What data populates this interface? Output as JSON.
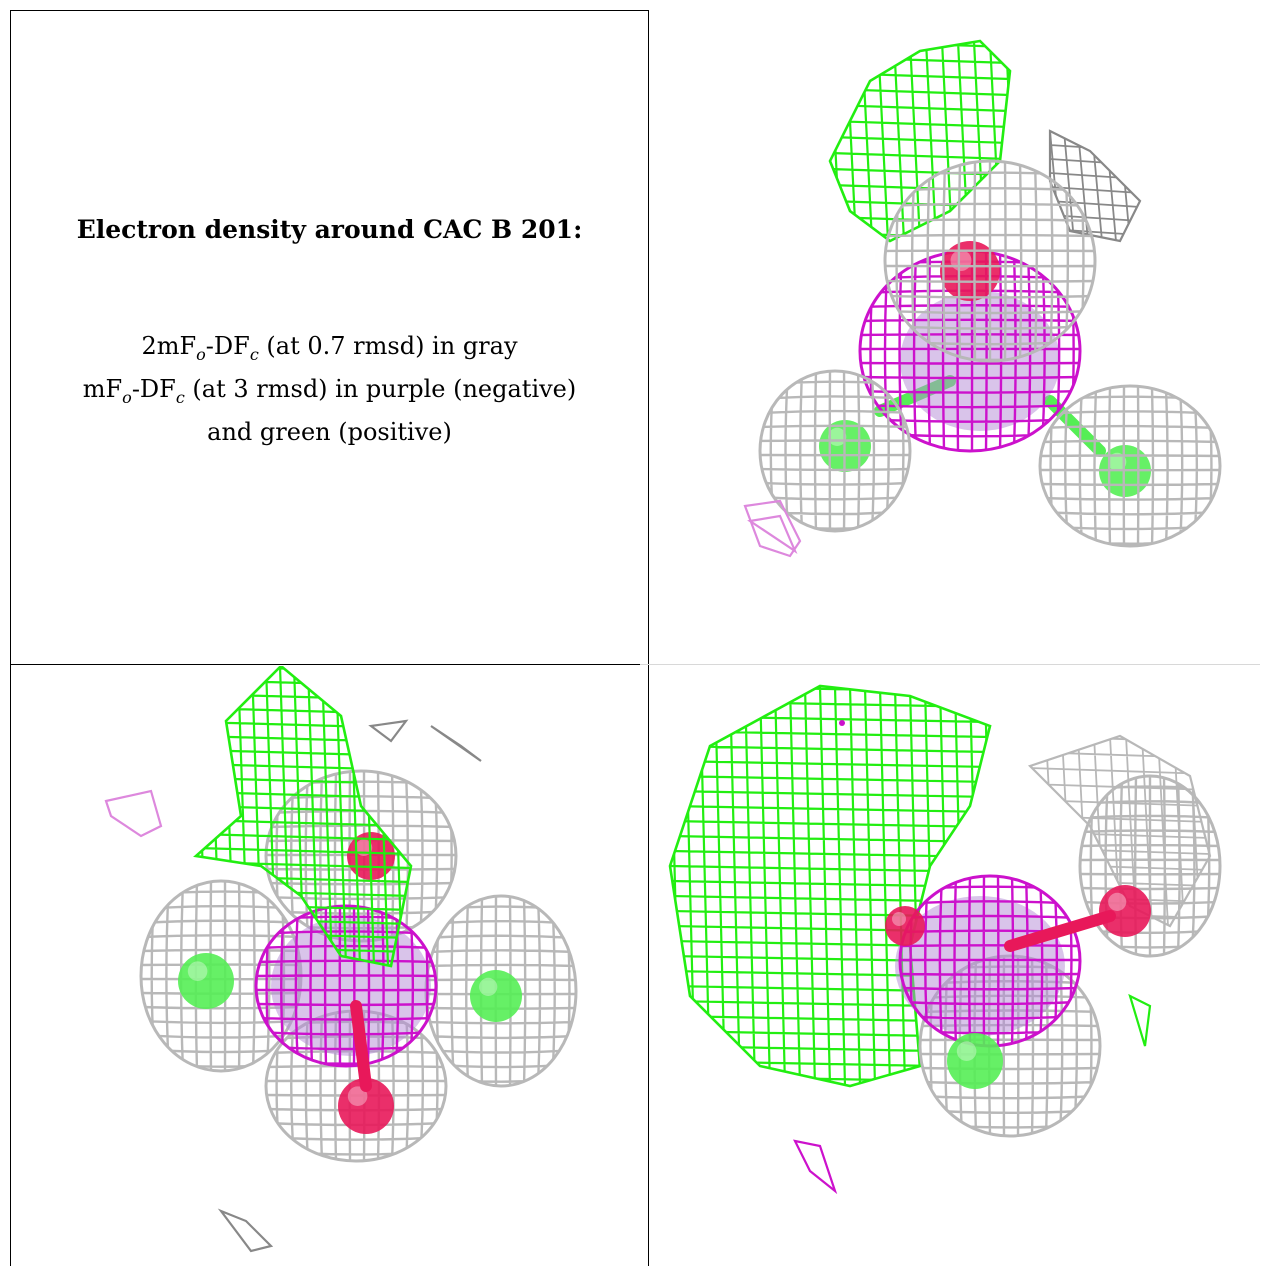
{
  "caption": {
    "title": "Electron density around CAC B 201:",
    "line1": {
      "a": "2mF",
      "sub1": "o",
      "b": "-DF",
      "sub2": "c",
      "c": " (at 0.7 rmsd) in gray"
    },
    "line2": {
      "a": "mF",
      "sub1": "o",
      "b": "-DF",
      "sub2": "c",
      "c": " (at 3 rmsd) in purple (negative)"
    },
    "line3": "and green (positive)"
  },
  "colors": {
    "gray_mesh": "#b8b8b8",
    "green_mesh": "#22ee11",
    "purple_mesh": "#cc11cc",
    "light_purple": "#dd88dd",
    "oxygen": "#e8185a",
    "chlorine": "#55ee55",
    "arsenic": "#b48ad6"
  },
  "panels": [
    {
      "name": "view-top-right"
    },
    {
      "name": "view-bottom-left"
    },
    {
      "name": "view-bottom-right"
    }
  ]
}
